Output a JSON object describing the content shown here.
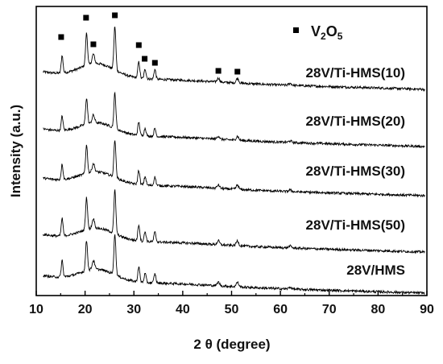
{
  "chart_data": {
    "type": "line",
    "xlabel_prefix": "2",
    "xlabel_symbol": "θ",
    "xlabel_unit": "(degree)",
    "ylabel": "Intensity (a.u.)",
    "xlim": [
      10,
      90
    ],
    "x_ticks": [
      10,
      20,
      30,
      40,
      50,
      60,
      70,
      80,
      90
    ],
    "y_ticks_labeled": false,
    "grid": false,
    "legend": {
      "placement": "top-right",
      "marker": "square",
      "formula_parts": [
        {
          "text": "V",
          "sub": false
        },
        {
          "text": "2",
          "sub": true
        },
        {
          "text": "O",
          "sub": false
        },
        {
          "text": "5",
          "sub": true
        }
      ]
    },
    "marker_positions_2theta": [
      15.1,
      20.2,
      21.7,
      26.1,
      31.0,
      32.2,
      34.3,
      47.3,
      51.2
    ],
    "peaks": [
      {
        "pos": 15.3,
        "height": 0.55,
        "width": 0.18
      },
      {
        "pos": 20.3,
        "height": 1.0,
        "width": 0.2
      },
      {
        "pos": 21.7,
        "height": 0.3,
        "width": 0.25
      },
      {
        "pos": 26.1,
        "height": 1.35,
        "width": 0.2
      },
      {
        "pos": 31.0,
        "height": 0.5,
        "width": 0.2
      },
      {
        "pos": 32.3,
        "height": 0.3,
        "width": 0.2
      },
      {
        "pos": 34.3,
        "height": 0.3,
        "width": 0.2
      },
      {
        "pos": 47.3,
        "height": 0.12,
        "width": 0.25
      },
      {
        "pos": 51.2,
        "height": 0.15,
        "width": 0.25
      },
      {
        "pos": 62.0,
        "height": 0.06,
        "width": 0.3
      }
    ],
    "series": [
      {
        "name": "28V/Ti-HMS(10)",
        "peak_scale": 0.8,
        "background": 0.35
      },
      {
        "name": "28V/Ti-HMS(20)",
        "peak_scale": 0.65,
        "background": 0.3
      },
      {
        "name": "28V/Ti-HMS(30)",
        "peak_scale": 0.7,
        "background": 0.3
      },
      {
        "name": "28V/Ti-HMS(50)",
        "peak_scale": 0.8,
        "background": 0.3
      },
      {
        "name": "28V/HMS",
        "peak_scale": 0.75,
        "background": 0.3
      }
    ]
  }
}
